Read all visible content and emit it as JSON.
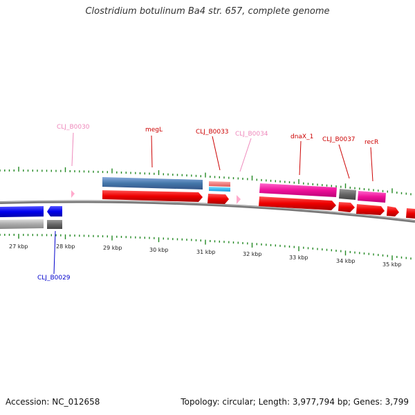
{
  "title": "Clostridium botulinum Ba4 str. 657, complete genome",
  "footer": {
    "accession": "Accession: NC_012658",
    "summary": "Topology: circular; Length: 3,977,794 bp; Genes: 3,799"
  },
  "axis_labels": [
    "27 kbp",
    "28 kbp",
    "29 kbp",
    "30 kbp",
    "31 kbp",
    "32 kbp",
    "33 kbp",
    "34 kbp",
    "35 kbp"
  ],
  "gene_labels": [
    {
      "text": "CLJ_B0030",
      "color": "#ee88bb"
    },
    {
      "text": "megL",
      "color": "#cc0000"
    },
    {
      "text": "CLJ_B0033",
      "color": "#cc0000"
    },
    {
      "text": "CLJ_B0034",
      "color": "#ee88bb"
    },
    {
      "text": "dnaX_1",
      "color": "#cc0000"
    },
    {
      "text": "CLJ_B0037",
      "color": "#cc0000"
    },
    {
      "text": "recR",
      "color": "#cc0000"
    },
    {
      "text": "CLJ_B0029",
      "color": "#0000cc"
    }
  ],
  "colors": {
    "backbone": "#777777",
    "tick": "#228822",
    "cds_red": "#ee0000",
    "gene_blue": "#0000ee",
    "gene_gray": "#aaaaaa",
    "gene_dark_gray": "#666666",
    "gene_pink": "#ee1199",
    "steel_blue": "#4477aa",
    "salmon": "#ee6666",
    "cyan": "#22bbee",
    "light_pink": "#ffaacc"
  }
}
